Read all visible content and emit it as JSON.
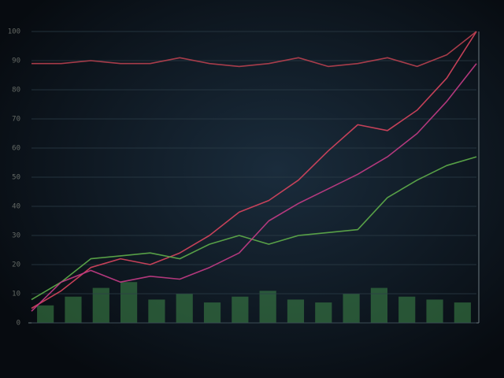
{
  "chart_data": [
    {
      "type": "bar",
      "categories": [
        null,
        null,
        null,
        null,
        null,
        null,
        null,
        null,
        null,
        null,
        null,
        null,
        null,
        null,
        null,
        null
      ],
      "values": [
        6,
        9,
        12,
        14,
        8,
        10,
        7,
        9,
        11,
        8,
        7,
        10,
        12,
        9,
        8,
        7
      ],
      "color": "#3f8a4a",
      "ylim": [
        0,
        100
      ]
    },
    {
      "type": "line",
      "categories": [
        null,
        null,
        null,
        null,
        null,
        null,
        null,
        null,
        null,
        null,
        null,
        null,
        null,
        null,
        null,
        null
      ],
      "ylim": [
        0,
        100
      ],
      "yticks": [
        0,
        10,
        20,
        30,
        40,
        50,
        60,
        70,
        80,
        90,
        100
      ],
      "grid": true,
      "series": [
        {
          "color": "#d8455e",
          "values": [
            5,
            11,
            19,
            22,
            20,
            24,
            30,
            38,
            42,
            49,
            59,
            68,
            66,
            73,
            84,
            100
          ]
        },
        {
          "color": "#5fae4a",
          "values": [
            8,
            14,
            22,
            23,
            24,
            22,
            27,
            30,
            27,
            30,
            31,
            32,
            43,
            49,
            54,
            57
          ]
        },
        {
          "color": "#c43c86",
          "values": [
            4,
            14,
            18,
            14,
            16,
            15,
            19,
            24,
            35,
            41,
            46,
            51,
            57,
            65,
            76,
            89
          ]
        },
        {
          "color": "#b8404f",
          "values": [
            89,
            89,
            90,
            89,
            89,
            91,
            89,
            88,
            89,
            91,
            88,
            89,
            91,
            88,
            92,
            100
          ]
        }
      ]
    }
  ]
}
